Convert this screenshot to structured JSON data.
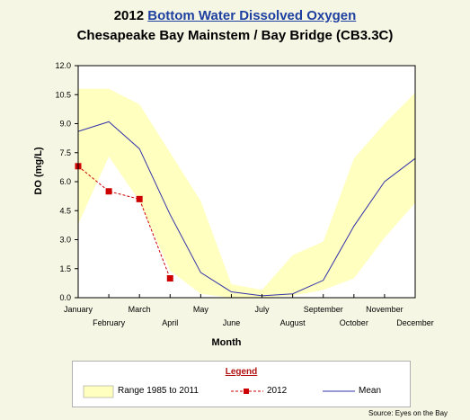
{
  "header": {
    "title_prefix": "2012",
    "title_link": "Bottom Water Dissolved Oxygen",
    "subtitle": "Chesapeake Bay Mainstem / Bay Bridge (CB3.3C)"
  },
  "chart_data": {
    "type": "line",
    "xlabel": "Month",
    "ylabel": "DO (mg/L)",
    "ylim": [
      0,
      12
    ],
    "yticks": [
      "0.0",
      "1.5",
      "3.0",
      "4.5",
      "6.0",
      "7.5",
      "9.0",
      "10.5",
      "12.0"
    ],
    "categories": [
      "January",
      "February",
      "March",
      "April",
      "May",
      "June",
      "July",
      "August",
      "September",
      "October",
      "November",
      "December"
    ],
    "range": {
      "name": "Range 1985 to 2011",
      "color": "#ffffc0",
      "low": [
        3.8,
        7.3,
        5.0,
        1.4,
        0.2,
        0.0,
        0.0,
        0.1,
        0.4,
        1.0,
        3.1,
        4.9
      ],
      "high": [
        10.8,
        10.8,
        10.0,
        7.5,
        5.0,
        0.7,
        0.4,
        2.2,
        2.9,
        7.2,
        9.0,
        10.6
      ]
    },
    "series": [
      {
        "name": "2012",
        "color": "#cc0000",
        "style": "dashed-square",
        "x": [
          "January",
          "February",
          "March",
          "April"
        ],
        "values": [
          6.8,
          5.5,
          5.1,
          1.0
        ]
      },
      {
        "name": "Mean",
        "color": "#3333aa",
        "style": "solid",
        "values": [
          8.6,
          9.1,
          7.7,
          4.3,
          1.3,
          0.3,
          0.1,
          0.2,
          0.9,
          3.7,
          6.0,
          7.2
        ]
      }
    ],
    "grid": false
  },
  "legend": {
    "title": "Legend",
    "range_label": "Range 1985 to 2011",
    "year_label": "2012",
    "mean_label": "Mean"
  },
  "source": "Source:   Eyes on the Bay"
}
